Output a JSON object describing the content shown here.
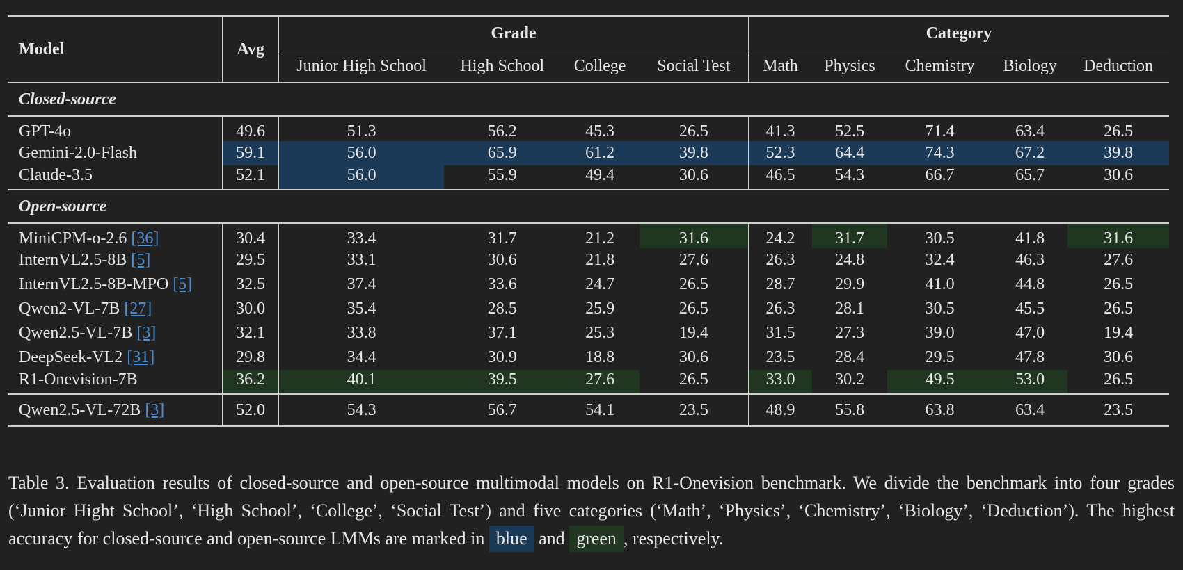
{
  "header": {
    "model": "Model",
    "avg": "Avg",
    "grade": "Grade",
    "category": "Category",
    "columns": [
      "Junior High School",
      "High School",
      "College",
      "Social Test",
      "Math",
      "Physics",
      "Chemistry",
      "Biology",
      "Deduction"
    ]
  },
  "sections": {
    "closed": "Closed-source",
    "open": "Open-source"
  },
  "closed_rows": [
    {
      "model": "GPT-4o",
      "cite": "",
      "values": [
        "49.6",
        "51.3",
        "56.2",
        "45.3",
        "26.5",
        "41.3",
        "52.5",
        "71.4",
        "63.4",
        "26.5"
      ]
    },
    {
      "model": "Gemini-2.0-Flash",
      "cite": "",
      "values": [
        "59.1",
        "56.0",
        "65.9",
        "61.2",
        "39.8",
        "52.3",
        "64.4",
        "74.3",
        "67.2",
        "39.8"
      ]
    },
    {
      "model": "Claude-3.5",
      "cite": "",
      "values": [
        "52.1",
        "56.0",
        "55.9",
        "49.4",
        "30.6",
        "46.5",
        "54.3",
        "66.7",
        "65.7",
        "30.6"
      ]
    }
  ],
  "open_rows": [
    {
      "model": "MiniCPM-o-2.6",
      "cite": "[36]",
      "values": [
        "30.4",
        "33.4",
        "31.7",
        "21.2",
        "31.6",
        "24.2",
        "31.7",
        "30.5",
        "41.8",
        "31.6"
      ]
    },
    {
      "model": "InternVL2.5-8B",
      "cite": "[5]",
      "values": [
        "29.5",
        "33.1",
        "30.6",
        "21.8",
        "27.6",
        "26.3",
        "24.8",
        "32.4",
        "46.3",
        "27.6"
      ]
    },
    {
      "model": "InternVL2.5-8B-MPO",
      "cite": "[5]",
      "values": [
        "32.5",
        "37.4",
        "33.6",
        "24.7",
        "26.5",
        "28.7",
        "29.9",
        "41.0",
        "44.8",
        "26.5"
      ]
    },
    {
      "model": "Qwen2-VL-7B",
      "cite": "[27]",
      "values": [
        "30.0",
        "35.4",
        "28.5",
        "25.9",
        "26.5",
        "26.3",
        "28.1",
        "30.5",
        "45.5",
        "26.5"
      ]
    },
    {
      "model": "Qwen2.5-VL-7B",
      "cite": "[3]",
      "values": [
        "32.1",
        "33.8",
        "37.1",
        "25.3",
        "19.4",
        "31.5",
        "27.3",
        "39.0",
        "47.0",
        "19.4"
      ]
    },
    {
      "model": "DeepSeek-VL2",
      "cite": "[31]",
      "values": [
        "29.8",
        "34.4",
        "30.9",
        "18.8",
        "30.6",
        "23.5",
        "28.4",
        "29.5",
        "47.8",
        "30.6"
      ]
    },
    {
      "model": "R1-Onevision-7B",
      "cite": "",
      "values": [
        "36.2",
        "40.1",
        "39.5",
        "27.6",
        "26.5",
        "33.0",
        "30.2",
        "49.5",
        "53.0",
        "26.5"
      ]
    }
  ],
  "extra_row": {
    "model": "Qwen2.5-VL-72B",
    "cite": "[3]",
    "values": [
      "52.0",
      "54.3",
      "56.7",
      "54.1",
      "23.5",
      "48.9",
      "55.8",
      "63.8",
      "63.4",
      "23.5"
    ]
  },
  "highlights": {
    "blue": [
      [
        1,
        0
      ],
      [
        1,
        1
      ],
      [
        1,
        2
      ],
      [
        1,
        3
      ],
      [
        1,
        4
      ],
      [
        1,
        5
      ],
      [
        1,
        6
      ],
      [
        1,
        7
      ],
      [
        1,
        8
      ],
      [
        1,
        9
      ],
      [
        2,
        1
      ]
    ],
    "green": [
      [
        0,
        4
      ],
      [
        0,
        6
      ],
      [
        0,
        9
      ],
      [
        6,
        0
      ],
      [
        6,
        1
      ],
      [
        6,
        2
      ],
      [
        6,
        3
      ],
      [
        6,
        5
      ],
      [
        6,
        7
      ],
      [
        6,
        8
      ]
    ],
    "blue_color": "#1b3a57",
    "green_color": "#213621"
  },
  "caption": {
    "part1": "Table 3. Evaluation results of closed-source and open-source multimodal models on R1-Onevision benchmark. We divide the benchmark into four grades (‘Junior Hight School’, ‘High School’, ‘College’, ‘Social Test’) and five categories (‘Math’, ‘Physics’, ‘Chemistry’, ‘Biology’, ‘Deduction’). The highest accuracy for closed-source and open-source LMMs are marked in",
    "blue_word": "blue",
    "and": "and",
    "green_word": "green",
    "part2": ", respectively."
  }
}
